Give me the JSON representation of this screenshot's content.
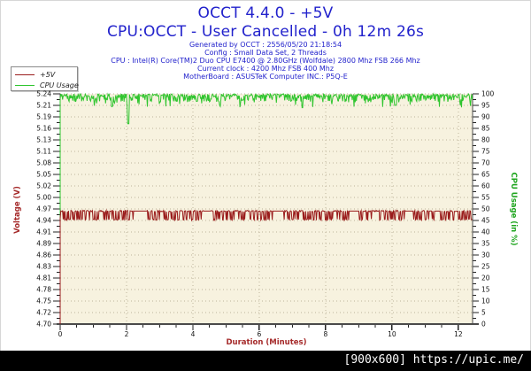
{
  "header": {
    "title": "OCCT 4.4.0 - +5V",
    "subtitle": "CPU:OCCT - User Cancelled - 0h 12m 26s",
    "info_lines": [
      "Generated by OCCT : 2556/05/20 21:18:54",
      "Config : Small Data Set, 2 Threads",
      "CPU : Intel(R) Core(TM)2 Duo CPU E7400 @ 2.80GHz (Wolfdale) 2800 Mhz FSB 266 Mhz",
      "Current clock : 4200 Mhz FSB 400 Mhz",
      "MotherBoard : ASUSTeK Computer INC.: P5Q-E"
    ]
  },
  "legend": {
    "items": [
      {
        "label": "+5V",
        "color": "#9a1c1c"
      },
      {
        "label": "CPU Usage",
        "color": "#2fc52f"
      }
    ]
  },
  "colors": {
    "header_blue": "#2222cc",
    "voltage_red": "#a52a2a",
    "cpu_green": "#1fa51f",
    "tick_text": "#111111",
    "axis_line": "#4a4a4a",
    "plot_bg": "#f7f2df",
    "grid": "#bdb49b",
    "watermark_bg": "#000000",
    "watermark_fg": "#ffffff"
  },
  "watermark": {
    "text": "[900x600] https://upic.me/"
  },
  "chart_data": {
    "type": "line",
    "title": "OCCT 4.4.0 - +5V",
    "x_axis": {
      "label": "Duration (Minutes)",
      "min": 0,
      "max": 12.43,
      "major_ticks": [
        0,
        2,
        4,
        6,
        8,
        10,
        12
      ],
      "minor_step": 0.5
    },
    "left_axis": {
      "label": "Voltage (V)",
      "min": 4.7,
      "max": 5.24,
      "tick_labels": [
        "5.24",
        "5.21",
        "5.19",
        "5.16",
        "5.13",
        "5.11",
        "5.08",
        "5.05",
        "5.02",
        "5.00",
        "4.97",
        "4.94",
        "4.91",
        "4.89",
        "4.86",
        "4.83",
        "4.81",
        "4.78",
        "4.75",
        "4.72",
        "4.70"
      ]
    },
    "right_axis": {
      "label": "CPU Usage (in %)",
      "min": 0,
      "max": 100,
      "tick_labels": [
        "100",
        "95",
        "90",
        "85",
        "80",
        "75",
        "70",
        "65",
        "60",
        "55",
        "50",
        "45",
        "40",
        "35",
        "30",
        "25",
        "20",
        "15",
        "10",
        "5",
        "0"
      ]
    },
    "grid": {
      "horizontal": "dotted-every-tick",
      "vertical": "dotted-every-major"
    },
    "legend_position": "top-left",
    "series": [
      {
        "name": "+5V",
        "axis": "left",
        "color": "#9a1c1c",
        "shape": "square-wave-noise",
        "high": 4.965,
        "low": 4.945,
        "start_from": 4.7,
        "flat_high_intervals": [
          [
            2.2,
            2.6
          ],
          [
            4.35,
            4.5
          ],
          [
            6.4,
            6.7
          ],
          [
            8.7,
            9.0
          ],
          [
            10.4,
            10.65
          ],
          [
            11.3,
            11.45
          ]
        ],
        "seed": 7,
        "summary": "toggles rapidly between ~4.945 V and ~4.97 V for the whole 12m26s run"
      },
      {
        "name": "CPU Usage",
        "axis": "right",
        "color": "#2fc52f",
        "shape": "spiky-top",
        "base": 99.5,
        "typical_min": 96,
        "start_from": 0,
        "dips": [
          {
            "x": 2.05,
            "value": 87
          },
          {
            "x": 7.3,
            "value": 94
          },
          {
            "x": 10.1,
            "value": 95
          }
        ],
        "seed": 3,
        "summary": "holds ~97-100% with small spikes; one dip to ~87% near minute 2"
      }
    ]
  }
}
